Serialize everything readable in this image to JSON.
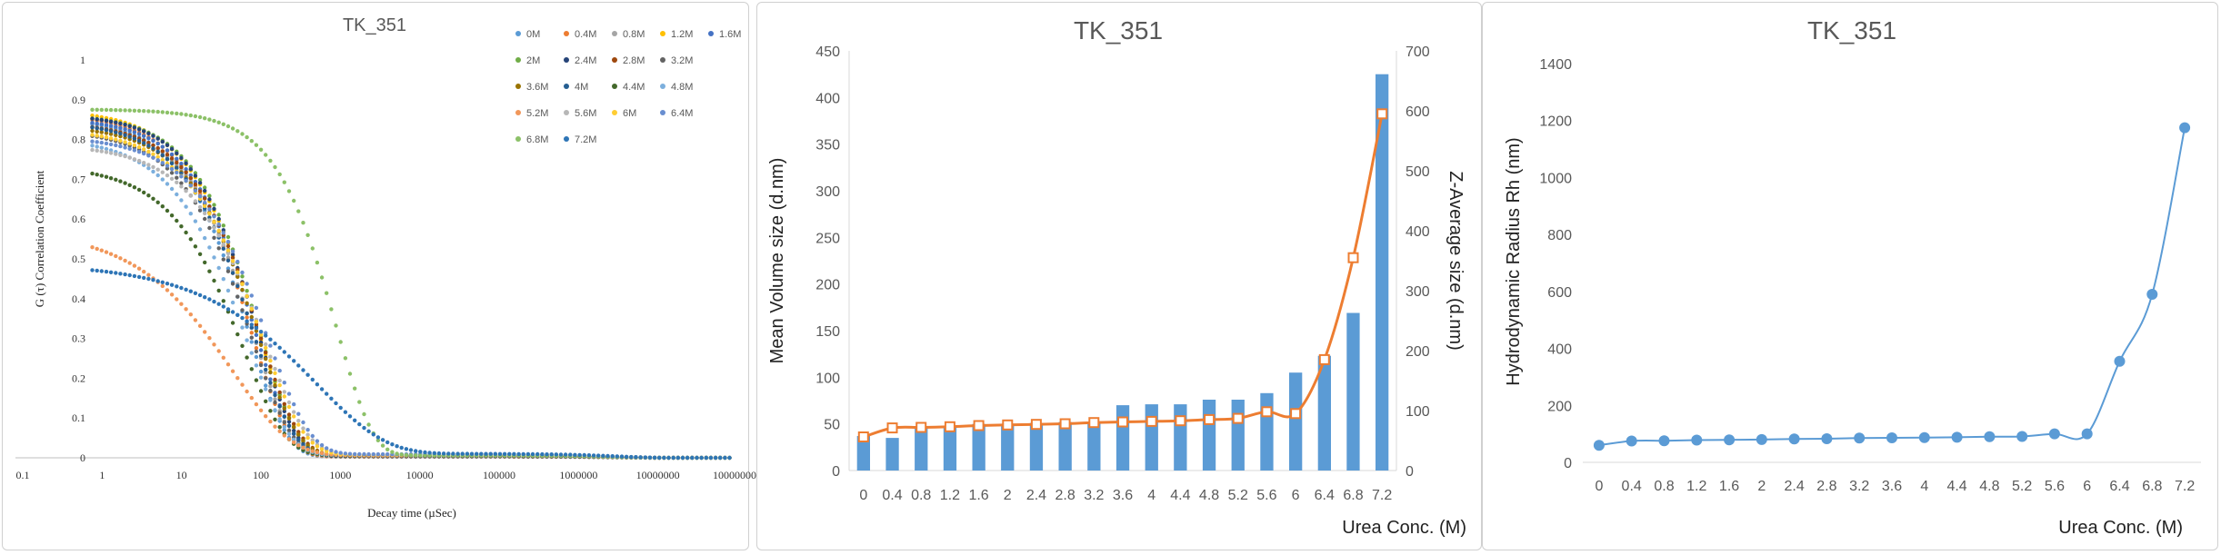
{
  "chart_data": [
    {
      "type": "scatter",
      "title": "TK_351",
      "xlabel": "Decay time (µSec)",
      "ylabel": "G (τ) Correlation Coefficient",
      "xscale": "log",
      "xlim": [
        0.1,
        100000000
      ],
      "ylim": [
        0,
        1
      ],
      "x_ticks": [
        "0.1",
        "1",
        "10",
        "100",
        "1000",
        "10000",
        "100000",
        "1000000",
        "10000000",
        "100000000"
      ],
      "y_ticks": [
        "0",
        "0.1",
        "0.2",
        "0.3",
        "0.4",
        "0.5",
        "0.6",
        "0.7",
        "0.8",
        "0.9",
        "1"
      ],
      "legend_position": "top-right",
      "series": [
        {
          "name": "0M",
          "color": "#5b9bd5",
          "y0": 0.85,
          "tau": 70,
          "beta": 0.9,
          "tail": 0.003
        },
        {
          "name": "0.4M",
          "color": "#ed7d31",
          "y0": 0.86,
          "tau": 75,
          "beta": 0.9,
          "tail": 0.003
        },
        {
          "name": "0.8M",
          "color": "#a5a5a5",
          "y0": 0.84,
          "tau": 80,
          "beta": 0.9,
          "tail": 0.004
        },
        {
          "name": "1.2M",
          "color": "#ffc000",
          "y0": 0.87,
          "tau": 90,
          "beta": 0.85,
          "tail": 0.005
        },
        {
          "name": "1.6M",
          "color": "#4472c4",
          "y0": 0.85,
          "tau": 85,
          "beta": 0.9,
          "tail": 0.004
        },
        {
          "name": "2M",
          "color": "#70ad47",
          "y0": 0.86,
          "tau": 95,
          "beta": 0.9,
          "tail": 0.004
        },
        {
          "name": "2.4M",
          "color": "#264478",
          "y0": 0.86,
          "tau": 90,
          "beta": 0.9,
          "tail": 0.004
        },
        {
          "name": "2.8M",
          "color": "#9e480e",
          "y0": 0.84,
          "tau": 95,
          "beta": 0.85,
          "tail": 0.005
        },
        {
          "name": "3.2M",
          "color": "#636363",
          "y0": 0.82,
          "tau": 75,
          "beta": 0.85,
          "tail": 0.005
        },
        {
          "name": "3.6M",
          "color": "#997300",
          "y0": 0.83,
          "tau": 90,
          "beta": 0.85,
          "tail": 0.006
        },
        {
          "name": "4M",
          "color": "#255e91",
          "y0": 0.84,
          "tau": 80,
          "beta": 0.85,
          "tail": 0.006
        },
        {
          "name": "4.4M",
          "color": "#43682b",
          "y0": 0.73,
          "tau": 60,
          "beta": 0.8,
          "tail": 0.006
        },
        {
          "name": "4.8M",
          "color": "#7cafdd",
          "y0": 0.8,
          "tau": 65,
          "beta": 0.8,
          "tail": 0.007
        },
        {
          "name": "5.2M",
          "color": "#f1975a",
          "y0": 0.57,
          "tau": 45,
          "beta": 0.6,
          "tail": 0.006
        },
        {
          "name": "5.6M",
          "color": "#b7b7b7",
          "y0": 0.78,
          "tau": 110,
          "beta": 0.8,
          "tail": 0.008
        },
        {
          "name": "6M",
          "color": "#ffcd33",
          "y0": 0.82,
          "tau": 100,
          "beta": 0.8,
          "tail": 0.008
        },
        {
          "name": "6.4M",
          "color": "#698ed0",
          "y0": 0.8,
          "tau": 120,
          "beta": 0.8,
          "tail": 0.009
        },
        {
          "name": "6.8M",
          "color": "#8cc168",
          "y0": 0.87,
          "tau": 900,
          "beta": 0.95,
          "tail": 0.006
        },
        {
          "name": "7.2M",
          "color": "#2e75b6",
          "y0": 0.48,
          "tau": 500,
          "beta": 0.5,
          "tail": 0.01
        }
      ]
    },
    {
      "type": "bar",
      "title": "TK_351",
      "xlabel": "Urea Conc. (M)",
      "ylabel": "Mean Volume size (d.nm)",
      "y2label": "Z-Average size (d.nm)",
      "categories": [
        "0",
        "0.4",
        "0.8",
        "1.2",
        "1.6",
        "2",
        "2.4",
        "2.8",
        "3.2",
        "3.6",
        "4",
        "4.4",
        "4.8",
        "5.2",
        "5.6",
        "6",
        "6.4",
        "6.8",
        "7.2"
      ],
      "ylim": [
        0,
        450
      ],
      "y_ticks": [
        "0",
        "50",
        "100",
        "150",
        "200",
        "250",
        "300",
        "350",
        "400",
        "450"
      ],
      "y2lim": [
        0,
        700
      ],
      "y2_ticks": [
        "0",
        "100",
        "200",
        "300",
        "400",
        "500",
        "600",
        "700"
      ],
      "series": [
        {
          "kind": "bar",
          "axis": "left",
          "color": "#5b9bd5",
          "values": [
            37,
            35,
            47,
            47,
            50,
            50,
            51,
            52,
            52,
            70,
            71,
            71,
            76,
            76,
            83,
            105,
            123,
            169,
            425
          ]
        },
        {
          "kind": "line",
          "axis": "right",
          "marker": "square",
          "color": "#ed7d31",
          "values": [
            56,
            71,
            72,
            73,
            75,
            76,
            77,
            78,
            80,
            81,
            82,
            83,
            85,
            87,
            98,
            95,
            185,
            355,
            595
          ]
        }
      ],
      "grid": false
    },
    {
      "type": "line",
      "title": "TK_351",
      "xlabel": "Urea Conc. (M)",
      "ylabel": "Hydrodynamic Radius Rh (nm)",
      "categories": [
        "0",
        "0.4",
        "0.8",
        "1.2",
        "1.6",
        "2",
        "2.4",
        "2.8",
        "3.2",
        "3.6",
        "4",
        "4.4",
        "4.8",
        "5.2",
        "5.6",
        "6",
        "6.4",
        "6.8",
        "7.2"
      ],
      "ylim": [
        0,
        1400
      ],
      "y_ticks": [
        "0",
        "200",
        "400",
        "600",
        "800",
        "1000",
        "1200",
        "1400"
      ],
      "series": [
        {
          "color": "#5b9bd5",
          "marker": "circle",
          "values": [
            60,
            75,
            76,
            78,
            79,
            80,
            82,
            83,
            85,
            86,
            87,
            88,
            90,
            91,
            100,
            100,
            355,
            590,
            1175
          ]
        }
      ],
      "grid": false
    }
  ]
}
